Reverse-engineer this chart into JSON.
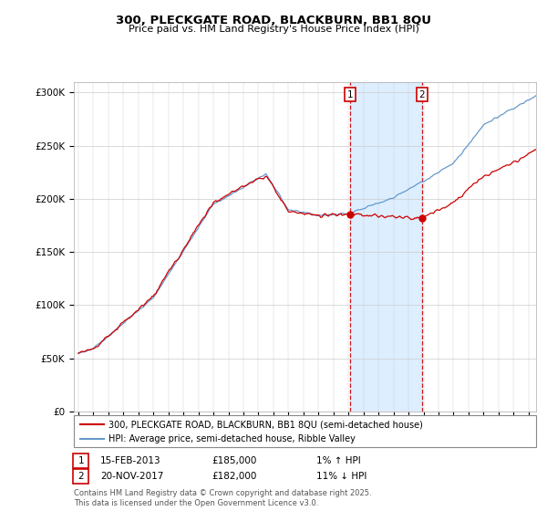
{
  "title_line1": "300, PLECKGATE ROAD, BLACKBURN, BB1 8QU",
  "title_line2": "Price paid vs. HM Land Registry's House Price Index (HPI)",
  "background_color": "#ffffff",
  "plot_bg_color": "#ffffff",
  "grid_color": "#cccccc",
  "hpi_shade_color": "#ddeeff",
  "hpi_line_color": "#6699cc",
  "price_line_color": "#cc0000",
  "sale1_date": "15-FEB-2013",
  "sale1_price": "£185,000",
  "sale1_label": "1% ↑ HPI",
  "sale2_date": "20-NOV-2017",
  "sale2_price": "£182,000",
  "sale2_label": "11% ↓ HPI",
  "legend_line1": "300, PLECKGATE ROAD, BLACKBURN, BB1 8QU (semi-detached house)",
  "legend_line2": "HPI: Average price, semi-detached house, Ribble Valley",
  "footer": "Contains HM Land Registry data © Crown copyright and database right 2025.\nThis data is licensed under the Open Government Licence v3.0.",
  "ylim": [
    0,
    310000
  ],
  "yticks": [
    0,
    50000,
    100000,
    150000,
    200000,
    250000,
    300000
  ],
  "ytick_labels": [
    "£0",
    "£50K",
    "£100K",
    "£150K",
    "£200K",
    "£250K",
    "£300K"
  ],
  "sale1_year": 2013.12,
  "sale2_year": 2017.89
}
